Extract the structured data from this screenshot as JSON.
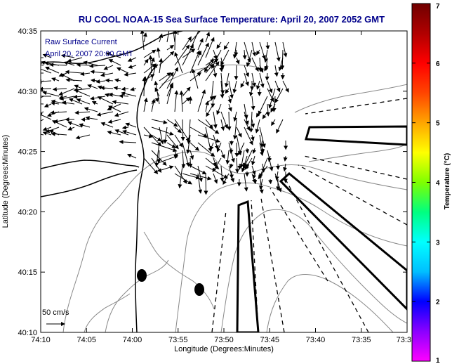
{
  "title": "RU COOL  NOAA-15  Sea Surface Temperature:  April 20, 2007 2052 GMT",
  "legend": {
    "line1": "Raw Surface Current",
    "line2": "April 20, 2007 20:00 GMT",
    "scale_label": "50 cm/s"
  },
  "axes": {
    "xlabel": "Longitude (Degrees:Minutes)",
    "ylabel": "Latitude (Degrees:Minutes)",
    "x_ticks": [
      "74:10",
      "74:05",
      "74:00",
      "73:55",
      "73:50",
      "73:45",
      "73:40",
      "73:35",
      "73:3"
    ],
    "y_ticks": [
      "40:35",
      "40:30",
      "40:25",
      "40:20",
      "40:15",
      "40:10"
    ]
  },
  "colorbar": {
    "label": "Temperature (°C)",
    "ticks": [
      "7",
      "6",
      "5",
      "4",
      "3",
      "2",
      "1"
    ],
    "colors": [
      "#ff00ff",
      "#8b00ff",
      "#0000ff",
      "#00bfff",
      "#00ffff",
      "#00ff80",
      "#7fff00",
      "#ffff00",
      "#ffa500",
      "#ff4500",
      "#ff0000",
      "#b00000",
      "#700000"
    ]
  },
  "colors": {
    "title": "#00008b",
    "coastline": "#000000",
    "contour": "#888888"
  }
}
